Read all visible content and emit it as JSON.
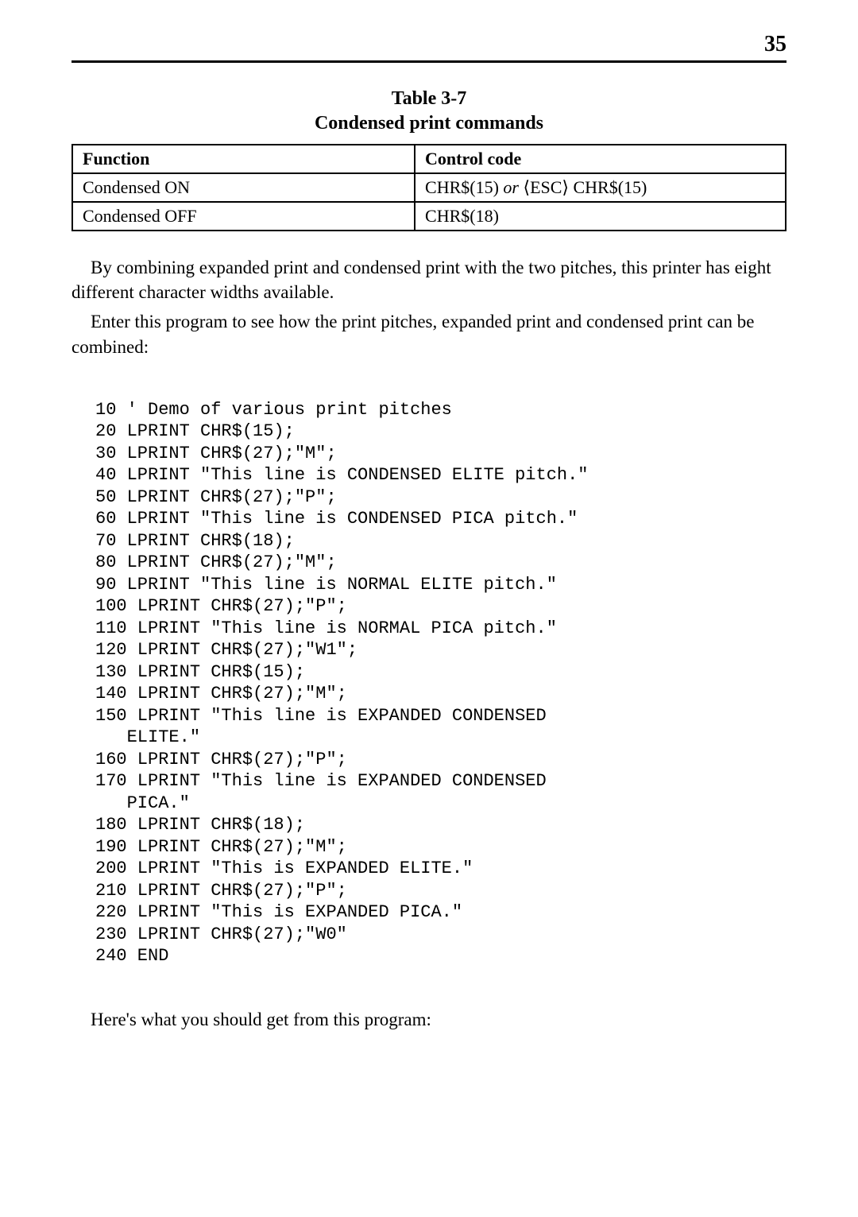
{
  "page_number": "35",
  "table": {
    "caption_line1": "Table 3-7",
    "caption_line2": "Condensed print commands",
    "headers": {
      "col1": "Function",
      "col2": "Control code"
    },
    "rows": [
      {
        "func": "Condensed ON",
        "code_prefix": "CHR$(15) ",
        "code_or": "or",
        "code_mid": " ⟨ESC⟩ CHR$(15)"
      },
      {
        "func": "Condensed OFF",
        "code_prefix": "CHR$(18)",
        "code_or": "",
        "code_mid": ""
      }
    ]
  },
  "para1": "By combining expanded print and condensed print with the two pitches, this printer has eight different character widths available.",
  "para2": "Enter this program to see how the print pitches, expanded print and condensed print can be combined:",
  "code_lines": [
    "10 ' Demo of various print pitches",
    "20 LPRINT CHR$(15);",
    "30 LPRINT CHR$(27);\"M\";",
    "40 LPRINT \"This line is CONDENSED ELITE pitch.\"",
    "50 LPRINT CHR$(27);\"P\";",
    "60 LPRINT \"This line is CONDENSED PICA pitch.\"",
    "70 LPRINT CHR$(18);",
    "80 LPRINT CHR$(27);\"M\";",
    "90 LPRINT \"This line is NORMAL ELITE pitch.\"",
    "100 LPRINT CHR$(27);\"P\";",
    "110 LPRINT \"This line is NORMAL PICA pitch.\"",
    "120 LPRINT CHR$(27);\"W1\";",
    "130 LPRINT CHR$(15);",
    "140 LPRINT CHR$(27);\"M\";",
    "150 LPRINT \"This line is EXPANDED CONDENSED",
    "   ELITE.\"",
    "160 LPRINT CHR$(27);\"P\";",
    "170 LPRINT \"This line is EXPANDED CONDENSED",
    "   PICA.\"",
    "180 LPRINT CHR$(18);",
    "190 LPRINT CHR$(27);\"M\";",
    "200 LPRINT \"This is EXPANDED ELITE.\"",
    "210 LPRINT CHR$(27);\"P\";",
    "220 LPRINT \"This is EXPANDED PICA.\"",
    "230 LPRINT CHR$(27);\"W0\"",
    "240 END"
  ],
  "closing_line": "Here's what you should get from this program:"
}
